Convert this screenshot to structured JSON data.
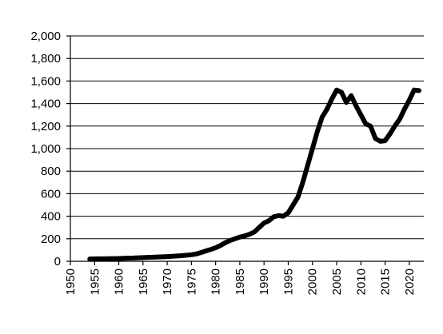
{
  "chart_data": {
    "type": "line",
    "title": "",
    "xlabel": "",
    "ylabel": "",
    "xlim": [
      1950,
      2023
    ],
    "ylim": [
      0,
      2000
    ],
    "grid": "horizontal",
    "legend": "none",
    "x_ticks": [
      1950,
      1955,
      1960,
      1965,
      1970,
      1975,
      1980,
      1985,
      1990,
      1995,
      2000,
      2005,
      2010,
      2015,
      2020
    ],
    "y_ticks": [
      0,
      200,
      400,
      600,
      800,
      1000,
      1200,
      1400,
      1600,
      1800,
      2000
    ],
    "x_tick_labels": [
      "1950",
      "1955",
      "1960",
      "1965",
      "1970",
      "1975",
      "1980",
      "1985",
      "1990",
      "1995",
      "2000",
      "2005",
      "2010",
      "2015",
      "2020"
    ],
    "y_tick_labels": [
      "0",
      "200",
      "400",
      "600",
      "800",
      "1,000",
      "1,200",
      "1,400",
      "1,600",
      "1,800",
      "2,000"
    ],
    "series": [
      {
        "color": "#000000",
        "x": [
          1954,
          1955,
          1956,
          1957,
          1958,
          1959,
          1960,
          1961,
          1962,
          1963,
          1964,
          1965,
          1966,
          1967,
          1968,
          1969,
          1970,
          1971,
          1972,
          1973,
          1974,
          1975,
          1976,
          1977,
          1978,
          1979,
          1980,
          1981,
          1982,
          1983,
          1984,
          1985,
          1986,
          1987,
          1988,
          1989,
          1990,
          1991,
          1992,
          1993,
          1994,
          1995,
          1996,
          1997,
          1998,
          1999,
          2000,
          2001,
          2002,
          2003,
          2004,
          2005,
          2006,
          2007,
          2008,
          2009,
          2010,
          2011,
          2012,
          2013,
          2014,
          2015,
          2016,
          2017,
          2018,
          2019,
          2020,
          2021,
          2022
        ],
        "values": [
          20,
          21,
          22,
          22,
          23,
          24,
          25,
          27,
          28,
          29,
          31,
          33,
          35,
          36,
          38,
          40,
          42,
          44,
          47,
          50,
          54,
          58,
          65,
          78,
          92,
          105,
          120,
          140,
          165,
          185,
          200,
          215,
          225,
          240,
          260,
          300,
          340,
          360,
          395,
          405,
          400,
          430,
          500,
          570,
          700,
          850,
          1000,
          1150,
          1280,
          1350,
          1440,
          1520,
          1500,
          1410,
          1470,
          1380,
          1300,
          1220,
          1200,
          1090,
          1065,
          1070,
          1130,
          1200,
          1260,
          1350,
          1430,
          1520,
          1515
        ]
      }
    ]
  }
}
